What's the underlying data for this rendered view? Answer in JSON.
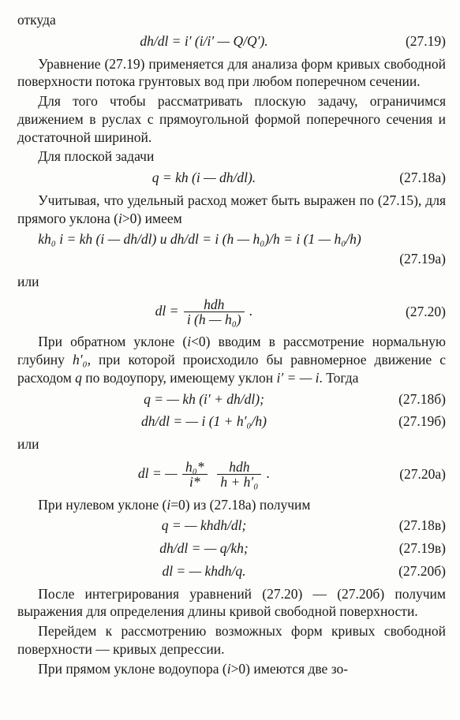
{
  "p_otkuda": "откуда",
  "eq_19": {
    "body": "dh/dl = i′ (i/i′ — Q/Q′).",
    "num": "(27.19)"
  },
  "p1": "Уравнение (27.19) применяется для анализа форм кри­вых свободной поверхности потока грунтовых вод при лю­бом поперечном сечении.",
  "p2": "Для того чтобы рассматривать плоскую задачу, огра­ничимся движением в руслах с прямоугольной формой по­перечного сечения и достаточной шириной.",
  "p3": "Для плоской задачи",
  "eq_18a": {
    "body": "q = kh (i — dh/dl).",
    "num": "(27.18а)"
  },
  "p4a": "Учитывая, что удельный расход может быть выражен по (27.15), для прямого уклона (",
  "p4b": "i",
  "p4c": ">0) имеем",
  "eq_19a_line": "kh₀ i = kh (i — dh/dl)  и  dh/dl = i (h — h₀)/h = i (1 — h₀/h)",
  "eq_19a_num": "(27.19а)",
  "p_ili1": "или",
  "eq_20": {
    "lhs": "dl =",
    "num_frac": "hdh",
    "den_frac": "i (h — h₀)",
    "tail": " .",
    "num": "(27.20)"
  },
  "p5a": "При обратном уклоне (",
  "p5b": "i",
  "p5c": "<0) вводим в рассмотрение нормальную глубину ",
  "p5d": "h′₀",
  "p5e": ", при которой происходило бы рав­номерное движение с расходом ",
  "p5f": "q",
  "p5g": " по водоупору, имеющему уклон ",
  "p5h": "i′ = — i",
  "p5i": ". Тогда",
  "eq_18b": {
    "body": "q = — kh (i′ + dh/dl);",
    "num": "(27.18б)"
  },
  "eq_19b": {
    "body": "dh/dl = — i (1 + h′₀/h)",
    "num": "(27.19б)"
  },
  "p_ili2": "или",
  "eq_20a": {
    "lhs": "dl = —",
    "f1n": "h₀*",
    "f1d": "i*",
    "f2n": "hdh",
    "f2d": "h + h′₀",
    "tail": " .",
    "num": "(27.20а)"
  },
  "p6a": "При нулевом уклоне (",
  "p6b": "i",
  "p6c": "=0) из (27.18а) получим",
  "eq_18v": {
    "body": "q = — khdh/dl;",
    "num": "(27.18в)"
  },
  "eq_19v": {
    "body": "dh/dl = — q/kh;",
    "num": "(27.19в)"
  },
  "eq_20b": {
    "body": "dl = — khdh/q.",
    "num": "(27.20б)"
  },
  "p7": "После интегрирования уравнений (27.20) — (27.20б) по­лучим выражения для определения длины кривой свобод­ной поверхности.",
  "p8": "Перейдем к рассмотрению возможных форм кривых сво­бодной поверхности — кривых депрессии.",
  "p9a": "При прямом уклоне водоупора (",
  "p9b": "i",
  "p9c": ">0) имеются две зо-"
}
